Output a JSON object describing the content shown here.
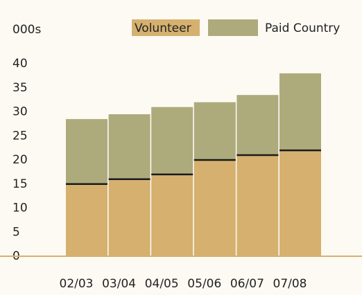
{
  "chart_data": {
    "type": "stacked_bar",
    "y_label": "000s",
    "categories": [
      "02/03",
      "03/04",
      "04/05",
      "05/06",
      "06/07",
      "07/08"
    ],
    "series": [
      {
        "name": "Volunteer",
        "color": "#d5b06f",
        "values": [
          15,
          16,
          17,
          20,
          21,
          22
        ]
      },
      {
        "name": "Paid Country",
        "color": "#adab7c",
        "values": [
          13.5,
          13.5,
          14,
          12,
          12.5,
          16
        ]
      }
    ],
    "ylim": [
      0,
      40
    ],
    "yticks": [
      0,
      5,
      10,
      15,
      20,
      25,
      30,
      35,
      40
    ],
    "legend": "top"
  }
}
